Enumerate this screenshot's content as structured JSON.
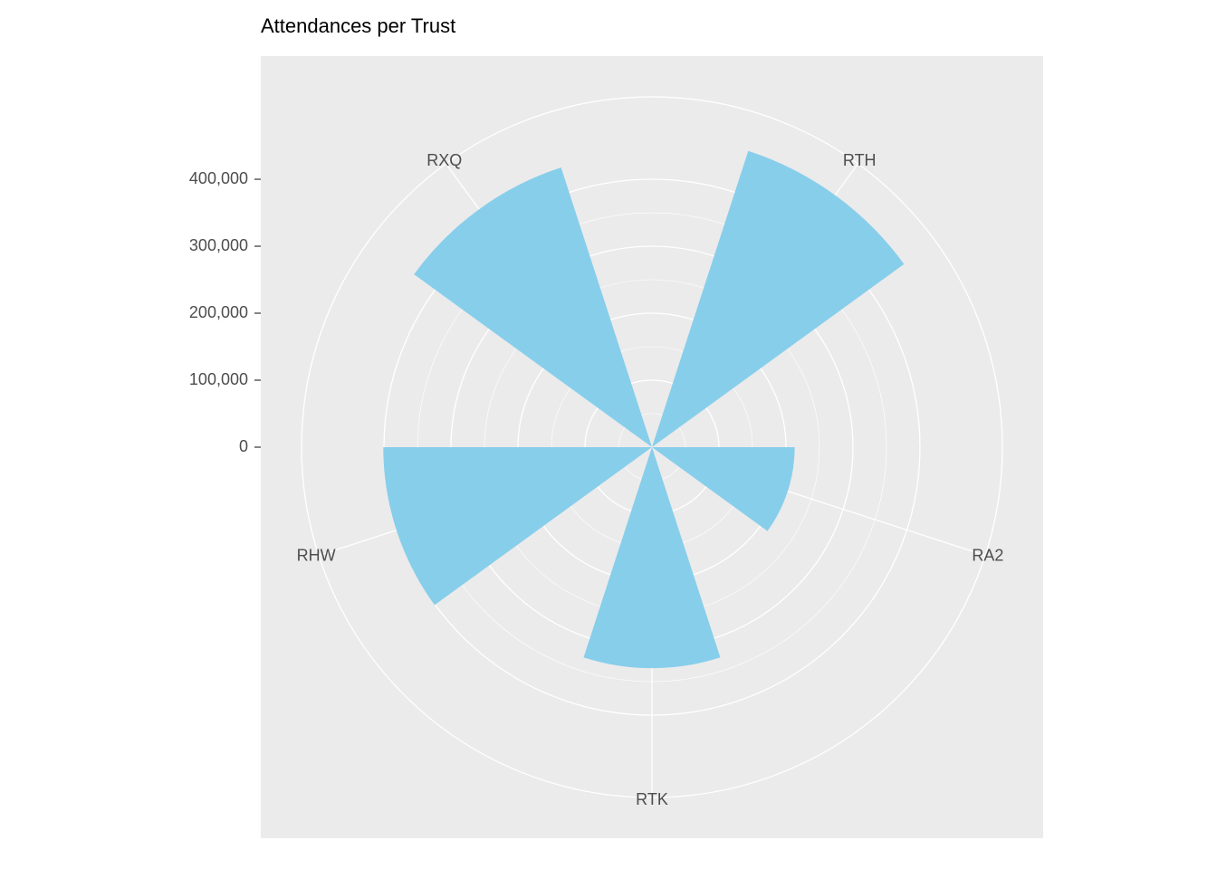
{
  "chart_data": {
    "type": "rose",
    "title": "Attendances per Trust",
    "categories": [
      "RTH",
      "RA2",
      "RTK",
      "RHW",
      "RXQ"
    ],
    "values": [
      465000,
      213000,
      330000,
      401000,
      439000
    ],
    "color": "#87CEEB",
    "ylim": [
      0,
      523000
    ],
    "yticks": [
      0,
      {
        "value": 100000,
        "label": "100,000"
      },
      {
        "value": 200000,
        "label": "200,000"
      },
      {
        "value": 300000,
        "label": "300,000"
      },
      {
        "value": 400000,
        "label": "400,000"
      }
    ],
    "grid": true
  }
}
